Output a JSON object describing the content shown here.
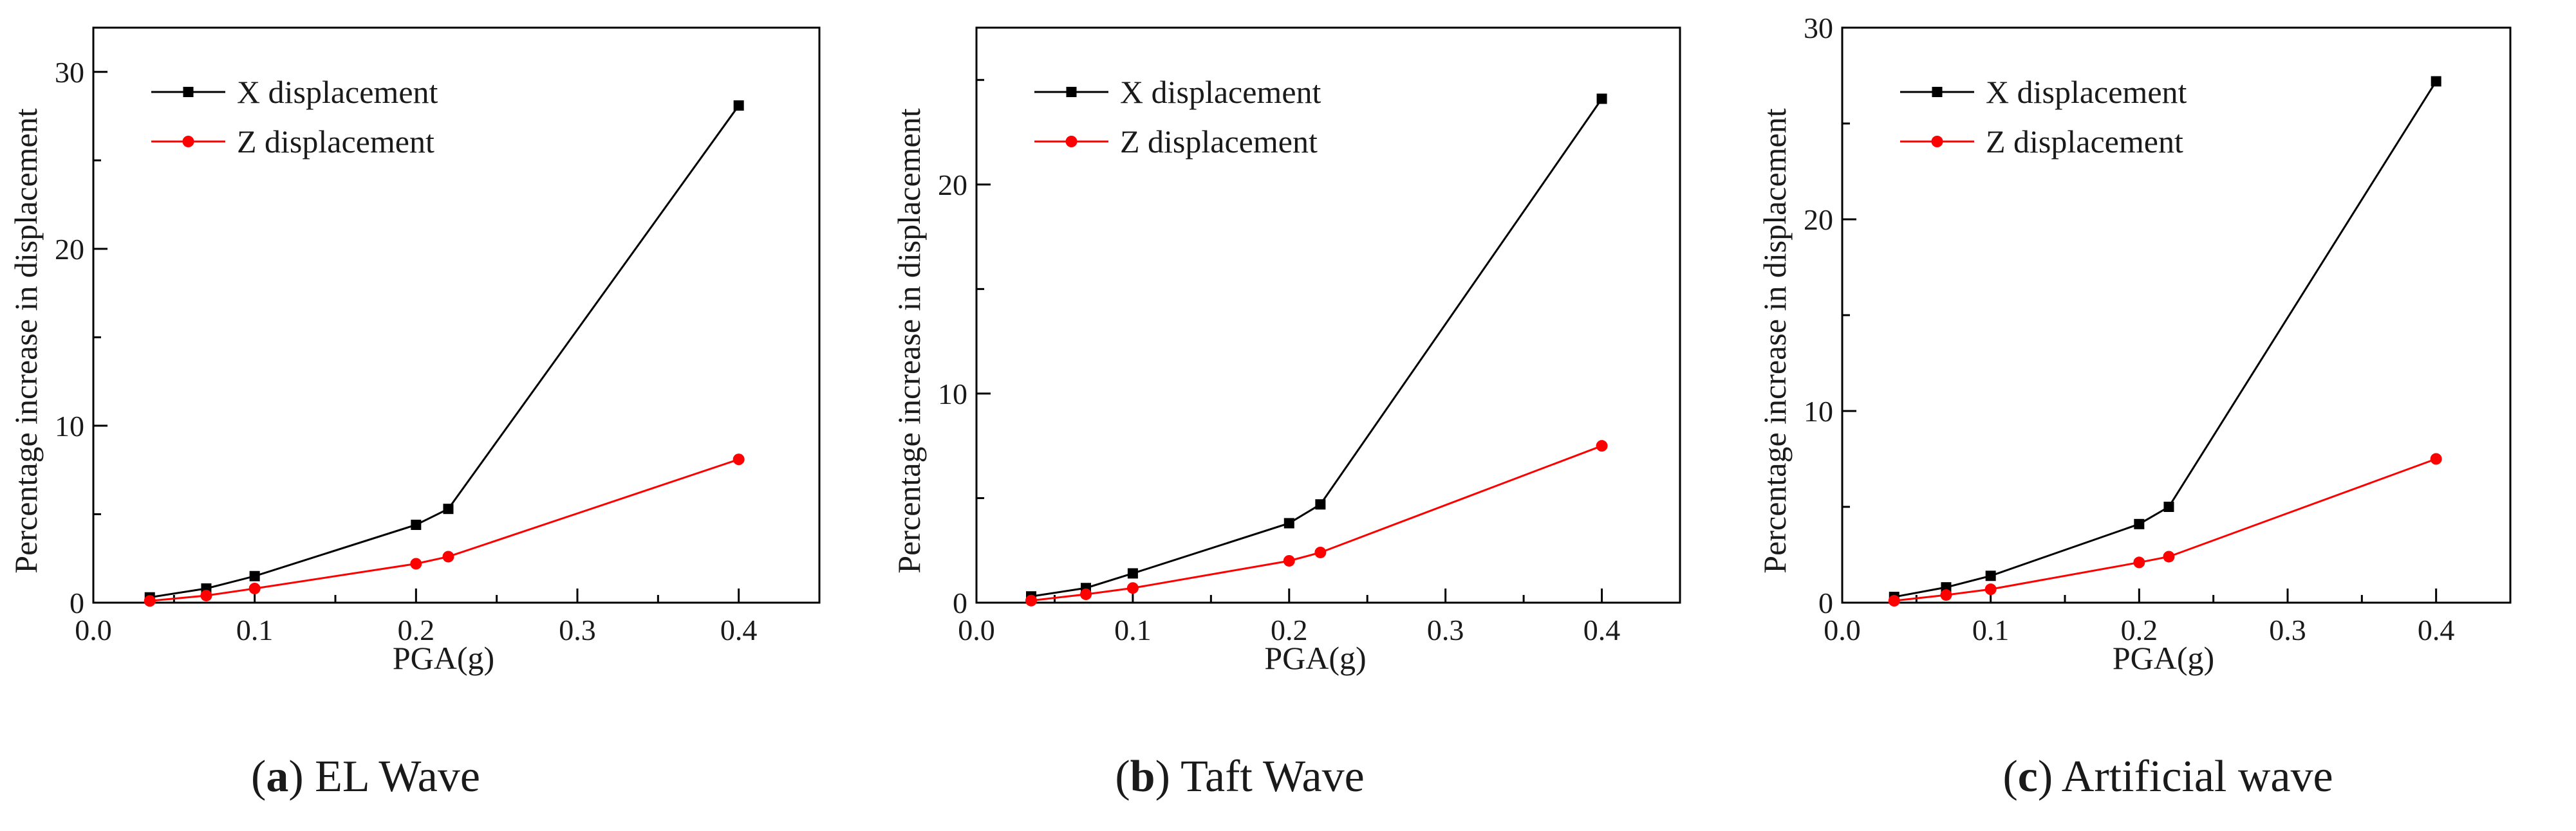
{
  "chart_data": [
    {
      "type": "line",
      "panel_letter": "a",
      "caption": "EL Wave",
      "xlabel": "PGA(g)",
      "ylabel": "Percentage increase in displacement",
      "xlim": [
        0.0,
        0.45
      ],
      "ylim": [
        0,
        32.5
      ],
      "xticks": [
        0.0,
        0.1,
        0.2,
        0.3,
        0.4
      ],
      "xtick_labels": [
        "0.0",
        "0.1",
        "0.2",
        "0.3",
        "0.4"
      ],
      "yticks": [
        0,
        10,
        20,
        30
      ],
      "ytick_labels": [
        "0",
        "10",
        "20",
        "30"
      ],
      "grid": false,
      "legend_position": "top-left",
      "x": [
        0.035,
        0.07,
        0.1,
        0.2,
        0.22,
        0.4
      ],
      "series": [
        {
          "name": "X displacement",
          "color": "#000000",
          "marker": "square",
          "values": [
            0.3,
            0.8,
            1.5,
            4.4,
            5.3,
            28.1
          ]
        },
        {
          "name": "Z displacement",
          "color": "#ff0000",
          "marker": "circle",
          "values": [
            0.1,
            0.4,
            0.8,
            2.2,
            2.6,
            8.1
          ]
        }
      ]
    },
    {
      "type": "line",
      "panel_letter": "b",
      "caption": "Taft Wave",
      "xlabel": "PGA(g)",
      "ylabel": "Percentage increase in displacement",
      "xlim": [
        0.0,
        0.45
      ],
      "ylim": [
        0,
        27.5
      ],
      "xticks": [
        0.0,
        0.1,
        0.2,
        0.3,
        0.4
      ],
      "xtick_labels": [
        "0.0",
        "0.1",
        "0.2",
        "0.3",
        "0.4"
      ],
      "yticks": [
        0,
        10,
        20
      ],
      "ytick_labels": [
        "0",
        "10",
        "20"
      ],
      "grid": false,
      "legend_position": "top-left",
      "x": [
        0.035,
        0.07,
        0.1,
        0.2,
        0.22,
        0.4
      ],
      "series": [
        {
          "name": "X displacement",
          "color": "#000000",
          "marker": "square",
          "values": [
            0.3,
            0.7,
            1.4,
            3.8,
            4.7,
            24.1
          ]
        },
        {
          "name": "Z displacement",
          "color": "#ff0000",
          "marker": "circle",
          "values": [
            0.1,
            0.4,
            0.7,
            2.0,
            2.4,
            7.5
          ]
        }
      ]
    },
    {
      "type": "line",
      "panel_letter": "c",
      "caption": "Artificial wave",
      "xlabel": "PGA(g)",
      "ylabel": "Percentage increase in displacement",
      "xlim": [
        0.0,
        0.45
      ],
      "ylim": [
        0,
        30
      ],
      "xticks": [
        0.0,
        0.1,
        0.2,
        0.3,
        0.4
      ],
      "xtick_labels": [
        "0.0",
        "0.1",
        "0.2",
        "0.3",
        "0.4"
      ],
      "yticks": [
        0,
        10,
        20,
        30
      ],
      "ytick_labels": [
        "0",
        "10",
        "20",
        "30"
      ],
      "grid": false,
      "legend_position": "top-left",
      "x": [
        0.035,
        0.07,
        0.1,
        0.2,
        0.22,
        0.4
      ],
      "series": [
        {
          "name": "X displacement",
          "color": "#000000",
          "marker": "square",
          "values": [
            0.3,
            0.8,
            1.4,
            4.1,
            5.0,
            27.2
          ]
        },
        {
          "name": "Z displacement",
          "color": "#ff0000",
          "marker": "circle",
          "values": [
            0.1,
            0.4,
            0.7,
            2.1,
            2.4,
            7.5
          ]
        }
      ]
    }
  ]
}
